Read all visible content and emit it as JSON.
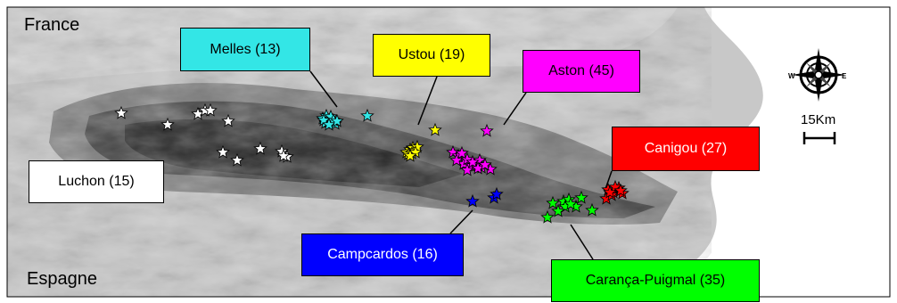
{
  "countries": {
    "north": "France",
    "south": "Espagne"
  },
  "scale": {
    "label": "15Km"
  },
  "compass": {
    "icon": "compass-rose-icon"
  },
  "sites": [
    {
      "id": "luchon",
      "label": "Luchon (15)",
      "color": "#ffffff",
      "text_color": "#000000"
    },
    {
      "id": "melles",
      "label": "Melles (13)",
      "color": "#33e6e6",
      "text_color": "#000000"
    },
    {
      "id": "ustou",
      "label": "Ustou (19)",
      "color": "#ffff00",
      "text_color": "#000000"
    },
    {
      "id": "aston",
      "label": "Aston (45)",
      "color": "#ff00ff",
      "text_color": "#000000"
    },
    {
      "id": "canigou",
      "label": "Canigou (27)",
      "color": "#ff0000",
      "text_color": "#ffffff"
    },
    {
      "id": "campcardos",
      "label": "Campcardos (16)",
      "color": "#0000ff",
      "text_color": "#ffffff"
    },
    {
      "id": "caranca",
      "label": "Carança-Puigmal (35)",
      "color": "#00ff00",
      "text_color": "#000000"
    }
  ]
}
